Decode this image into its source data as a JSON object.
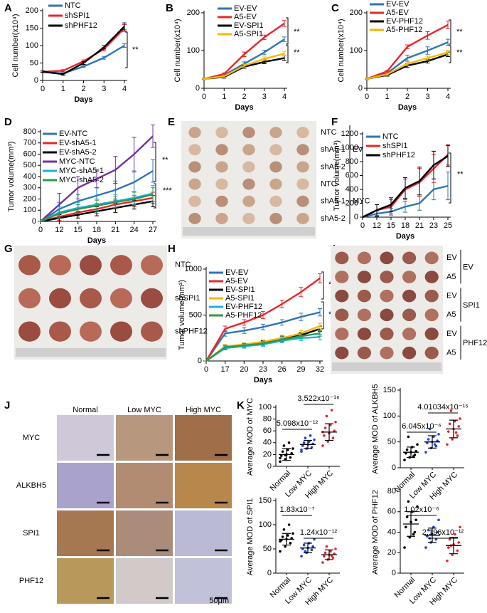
{
  "chart_data": [
    {
      "letter": "A",
      "type": "line",
      "ylabel": "Cell number(x10⁴)",
      "xlabel": "Days",
      "x": [
        0,
        1,
        2,
        3,
        4
      ],
      "xlim": [
        0,
        4
      ],
      "xticks": [
        0,
        1,
        2,
        3,
        4
      ],
      "ylim": [
        0,
        200
      ],
      "yticks": [
        0,
        50,
        100,
        150,
        200
      ],
      "series": [
        {
          "name": "NTC",
          "color": "#2e75b6",
          "values": [
            25,
            20,
            40,
            65,
            100
          ],
          "errors": [
            2,
            2,
            3,
            4,
            5
          ]
        },
        {
          "name": "shSPI1",
          "color": "#e8262a",
          "values": [
            25,
            28,
            55,
            90,
            150
          ],
          "errors": [
            2,
            3,
            4,
            5,
            10
          ]
        },
        {
          "name": "shPHF12",
          "color": "#000000",
          "values": [
            25,
            18,
            50,
            95,
            155
          ],
          "errors": [
            2,
            3,
            4,
            5,
            10
          ]
        }
      ],
      "annotations": [
        "**"
      ]
    },
    {
      "letter": "B",
      "type": "line",
      "ylabel": "Cell number(x10⁴)",
      "xlabel": "Days",
      "x": [
        0,
        1,
        2,
        3,
        4
      ],
      "xlim": [
        0,
        4
      ],
      "xticks": [
        0,
        1,
        2,
        3,
        4
      ],
      "ylim": [
        0,
        200
      ],
      "yticks": [
        0,
        100,
        200
      ],
      "series": [
        {
          "name": "EV-EV",
          "color": "#2e75b6",
          "values": [
            25,
            35,
            65,
            95,
            130
          ],
          "errors": [
            2,
            3,
            5,
            6,
            6
          ]
        },
        {
          "name": "A5-EV",
          "color": "#e8262a",
          "values": [
            25,
            38,
            90,
            135,
            172
          ],
          "errors": [
            2,
            3,
            6,
            6,
            8
          ]
        },
        {
          "name": "EV-SPI1",
          "color": "#000000",
          "values": [
            25,
            30,
            57,
            70,
            80
          ],
          "errors": [
            2,
            3,
            4,
            5,
            6
          ]
        },
        {
          "name": "A5-SPI1",
          "color": "#f5b800",
          "values": [
            25,
            32,
            60,
            78,
            92
          ],
          "errors": [
            2,
            3,
            4,
            5,
            6
          ]
        }
      ],
      "annotations": [
        "**",
        "**"
      ]
    },
    {
      "letter": "C",
      "type": "line",
      "ylabel": "Cell number(x10⁴)",
      "xlabel": "Days",
      "x": [
        0,
        1,
        2,
        3,
        4
      ],
      "xlim": [
        0,
        4
      ],
      "xticks": [
        0,
        1,
        2,
        3,
        4
      ],
      "ylim": [
        0,
        200
      ],
      "yticks": [
        0,
        100,
        200
      ],
      "series": [
        {
          "name": "EV-EV",
          "color": "#2e75b6",
          "values": [
            25,
            40,
            80,
            100,
            122
          ],
          "errors": [
            2,
            3,
            8,
            10,
            8
          ]
        },
        {
          "name": "A5-EV",
          "color": "#e8262a",
          "values": [
            25,
            45,
            110,
            140,
            168
          ],
          "errors": [
            2,
            3,
            5,
            10,
            10
          ]
        },
        {
          "name": "EV-PHF12",
          "color": "#000000",
          "values": [
            25,
            35,
            60,
            72,
            90
          ],
          "errors": [
            2,
            3,
            5,
            5,
            6
          ]
        },
        {
          "name": "A5-PHF12",
          "color": "#f5b800",
          "values": [
            25,
            37,
            65,
            80,
            95
          ],
          "errors": [
            2,
            3,
            5,
            5,
            6
          ]
        }
      ],
      "annotations": [
        "**",
        "**"
      ]
    },
    {
      "letter": "D",
      "type": "line",
      "ylabel": "Tumor volume(mm³)",
      "xlabel": "Days",
      "categories": [
        0,
        12,
        15,
        18,
        21,
        24,
        27
      ],
      "ylim": [
        0,
        800
      ],
      "yticks": [
        0,
        100,
        200,
        300,
        400,
        500,
        600,
        700,
        800
      ],
      "series": [
        {
          "name": "EV-NTC",
          "color": "#2e75b6",
          "values": [
            0,
            110,
            180,
            230,
            280,
            350,
            450
          ],
          "errors": [
            0,
            60,
            60,
            70,
            80,
            90,
            100
          ]
        },
        {
          "name": "EV-shA5-1",
          "color": "#e8262a",
          "values": [
            0,
            40,
            80,
            110,
            150,
            180,
            210
          ],
          "errors": [
            0,
            30,
            30,
            40,
            40,
            50,
            50
          ]
        },
        {
          "name": "EV-shA5-2",
          "color": "#000000",
          "values": [
            0,
            30,
            60,
            90,
            120,
            150,
            180
          ],
          "errors": [
            0,
            30,
            30,
            40,
            40,
            40,
            50
          ]
        },
        {
          "name": "MYC-NTC",
          "color": "#7030a0",
          "values": [
            0,
            150,
            300,
            380,
            460,
            600,
            760
          ],
          "errors": [
            0,
            100,
            100,
            80,
            120,
            150,
            100
          ]
        },
        {
          "name": "MYC-shA5-1",
          "color": "#1ab0e8",
          "values": [
            0,
            80,
            120,
            150,
            180,
            210,
            250
          ],
          "errors": [
            0,
            50,
            50,
            50,
            60,
            60,
            70
          ]
        },
        {
          "name": "MYC-shA5-2",
          "color": "#2e9a48",
          "values": [
            0,
            70,
            110,
            140,
            170,
            200,
            240
          ],
          "errors": [
            0,
            40,
            40,
            50,
            50,
            60,
            60
          ]
        }
      ],
      "annotations": [
        "**",
        "***"
      ]
    },
    {
      "letter": "F",
      "type": "line",
      "ylabel": "Tumor volume(mm³)",
      "xlabel": "Days",
      "categories": [
        0,
        12,
        15,
        18,
        21,
        23,
        25
      ],
      "ylim": [
        0,
        1200
      ],
      "yticks": [
        0,
        200,
        400,
        600,
        800,
        1000,
        1200
      ],
      "series": [
        {
          "name": "NTC",
          "color": "#2e75b6",
          "values": [
            0,
            50,
            80,
            150,
            200,
            400,
            450
          ],
          "errors": [
            0,
            40,
            50,
            80,
            100,
            150,
            200
          ]
        },
        {
          "name": "shSPI1",
          "color": "#e8262a",
          "values": [
            0,
            100,
            150,
            400,
            500,
            700,
            900
          ],
          "errors": [
            0,
            80,
            100,
            150,
            200,
            200,
            150
          ]
        },
        {
          "name": "shPHF12",
          "color": "#000000",
          "values": [
            0,
            100,
            180,
            420,
            520,
            750,
            880
          ],
          "errors": [
            0,
            80,
            100,
            150,
            200,
            200,
            150
          ]
        }
      ],
      "annotations": [
        "**"
      ]
    },
    {
      "letter": "H",
      "type": "line",
      "ylabel": "Tumor volume(mm³)",
      "xlabel": "Days",
      "categories": [
        0,
        17,
        20,
        23,
        26,
        29,
        32
      ],
      "ylim": [
        0,
        1000
      ],
      "yticks": [
        0,
        500,
        1000
      ],
      "series": [
        {
          "name": "EV-EV",
          "color": "#2e75b6",
          "values": [
            0,
            300,
            330,
            370,
            420,
            480,
            530
          ],
          "errors": [
            0,
            30,
            30,
            30,
            30,
            40,
            40
          ]
        },
        {
          "name": "A5-EV",
          "color": "#e8262a",
          "values": [
            0,
            350,
            420,
            500,
            620,
            750,
            900
          ],
          "errors": [
            0,
            30,
            30,
            40,
            40,
            50,
            50
          ]
        },
        {
          "name": "EV-SPI1",
          "color": "#000000",
          "values": [
            0,
            150,
            170,
            200,
            240,
            280,
            350
          ],
          "errors": [
            0,
            20,
            20,
            20,
            30,
            30,
            30
          ]
        },
        {
          "name": "A5-SPI1",
          "color": "#f5b800",
          "values": [
            0,
            160,
            180,
            210,
            250,
            300,
            380
          ],
          "errors": [
            0,
            20,
            20,
            20,
            30,
            30,
            30
          ]
        },
        {
          "name": "EV-PHF12",
          "color": "#1ab0e8",
          "values": [
            0,
            140,
            160,
            180,
            220,
            250,
            260
          ],
          "errors": [
            0,
            20,
            20,
            20,
            20,
            30,
            30
          ]
        },
        {
          "name": "A5-PHF12",
          "color": "#2e9a48",
          "values": [
            0,
            150,
            170,
            190,
            230,
            270,
            300
          ],
          "errors": [
            0,
            20,
            20,
            20,
            20,
            30,
            30
          ]
        }
      ],
      "annotations": [
        "*",
        "*"
      ]
    },
    {
      "letter": "K",
      "type": "dot",
      "ylabel": "Average MOD of MYC",
      "categories": [
        "Normal",
        "Low MYC",
        "High MYC"
      ],
      "colors": [
        "#000000",
        "#1f3fe0",
        "#e8262a"
      ],
      "ylim": [
        0,
        100
      ],
      "yticks": [
        0,
        20,
        40,
        60,
        80,
        100
      ],
      "points": [
        [
          8,
          12,
          15,
          18,
          20,
          22,
          25,
          28,
          30,
          35,
          40,
          14,
          19
        ],
        [
          25,
          30,
          32,
          35,
          37,
          38,
          40,
          42,
          45,
          48,
          52,
          28
        ],
        [
          35,
          42,
          48,
          52,
          56,
          60,
          65,
          70,
          75,
          85,
          95,
          58
        ]
      ],
      "means": [
        20,
        37,
        58
      ],
      "sds": [
        10,
        7,
        14
      ],
      "pvalues": [
        "5.098x10⁻¹²",
        "3.522x10⁻¹⁶"
      ]
    },
    {
      "type": "dot",
      "ylabel": "Average MOD of ALKBH5",
      "categories": [
        "Normal",
        "Low MYC",
        "High MYC"
      ],
      "colors": [
        "#000000",
        "#1f3fe0",
        "#e8262a"
      ],
      "ylim": [
        0,
        150
      ],
      "yticks": [
        0,
        50,
        100,
        150
      ],
      "points": [
        [
          15,
          20,
          25,
          28,
          30,
          32,
          35,
          40,
          45,
          60,
          22
        ],
        [
          30,
          38,
          42,
          48,
          50,
          52,
          55,
          60,
          65,
          75,
          45
        ],
        [
          45,
          55,
          62,
          70,
          75,
          80,
          85,
          90,
          95,
          110,
          68
        ]
      ],
      "means": [
        30,
        50,
        75
      ],
      "sds": [
        10,
        12,
        17
      ],
      "pvalues": [
        "6.045x10⁻⁶",
        "4.01034x10⁻¹⁵"
      ]
    },
    {
      "type": "dot",
      "ylabel": "Average MOD of SPI1",
      "categories": [
        "Normal",
        "Low MYC",
        "High MYC"
      ],
      "colors": [
        "#000000",
        "#1f3fe0",
        "#e8262a"
      ],
      "ylim": [
        0,
        150
      ],
      "yticks": [
        0,
        50,
        100,
        150
      ],
      "points": [
        [
          45,
          55,
          62,
          68,
          70,
          72,
          75,
          78,
          82,
          90,
          100,
          66
        ],
        [
          35,
          42,
          48,
          50,
          52,
          55,
          58,
          62,
          70,
          45
        ],
        [
          22,
          28,
          32,
          35,
          38,
          40,
          42,
          45,
          50,
          55,
          36
        ]
      ],
      "means": [
        70,
        52,
        38
      ],
      "sds": [
        12,
        10,
        10
      ],
      "pvalues": [
        "1.83x10⁻⁷",
        "1.24x10⁻¹²"
      ]
    },
    {
      "type": "dot",
      "ylabel": "Average MOD of PHF12",
      "categories": [
        "Normal",
        "Low MYC",
        "High MYC"
      ],
      "colors": [
        "#000000",
        "#1f3fe0",
        "#e8262a"
      ],
      "ylim": [
        0,
        80
      ],
      "yticks": [
        0,
        20,
        40,
        60,
        80
      ],
      "points": [
        [
          25,
          35,
          40,
          45,
          50,
          52,
          55,
          60,
          65,
          70,
          38
        ],
        [
          25,
          30,
          33,
          36,
          38,
          40,
          42,
          45,
          52,
          34
        ],
        [
          12,
          18,
          22,
          25,
          28,
          30,
          33,
          38,
          45,
          27
        ]
      ],
      "means": [
        48,
        37,
        27
      ],
      "sds": [
        12,
        7,
        8
      ],
      "pvalues": [
        "1.02x10⁻⁶",
        "2.196x10⁻¹²"
      ]
    }
  ],
  "image_panels": {
    "E": {
      "letter": "E",
      "labels": [
        "NTC",
        "shA5-1",
        "shA5-2",
        "NTC",
        "shA5-1",
        "shA5-2"
      ],
      "groups": [
        "EV",
        "MYC"
      ]
    },
    "G": {
      "letter": "G",
      "labels": [
        "NTC",
        "shSPI1",
        "shPHF12"
      ]
    },
    "I": {
      "letter": "I",
      "labels": [
        "EV",
        "A5",
        "EV",
        "A5",
        "EV",
        "A5"
      ],
      "groups": [
        "EV",
        "SPI1",
        "PHF12"
      ]
    },
    "J": {
      "letter": "J",
      "columns": [
        "Normal",
        "Low MYC",
        "High MYC"
      ],
      "rows": [
        "MYC",
        "ALKBH5",
        "SPI1",
        "PHF12"
      ],
      "scale_bar": "50μm"
    }
  }
}
